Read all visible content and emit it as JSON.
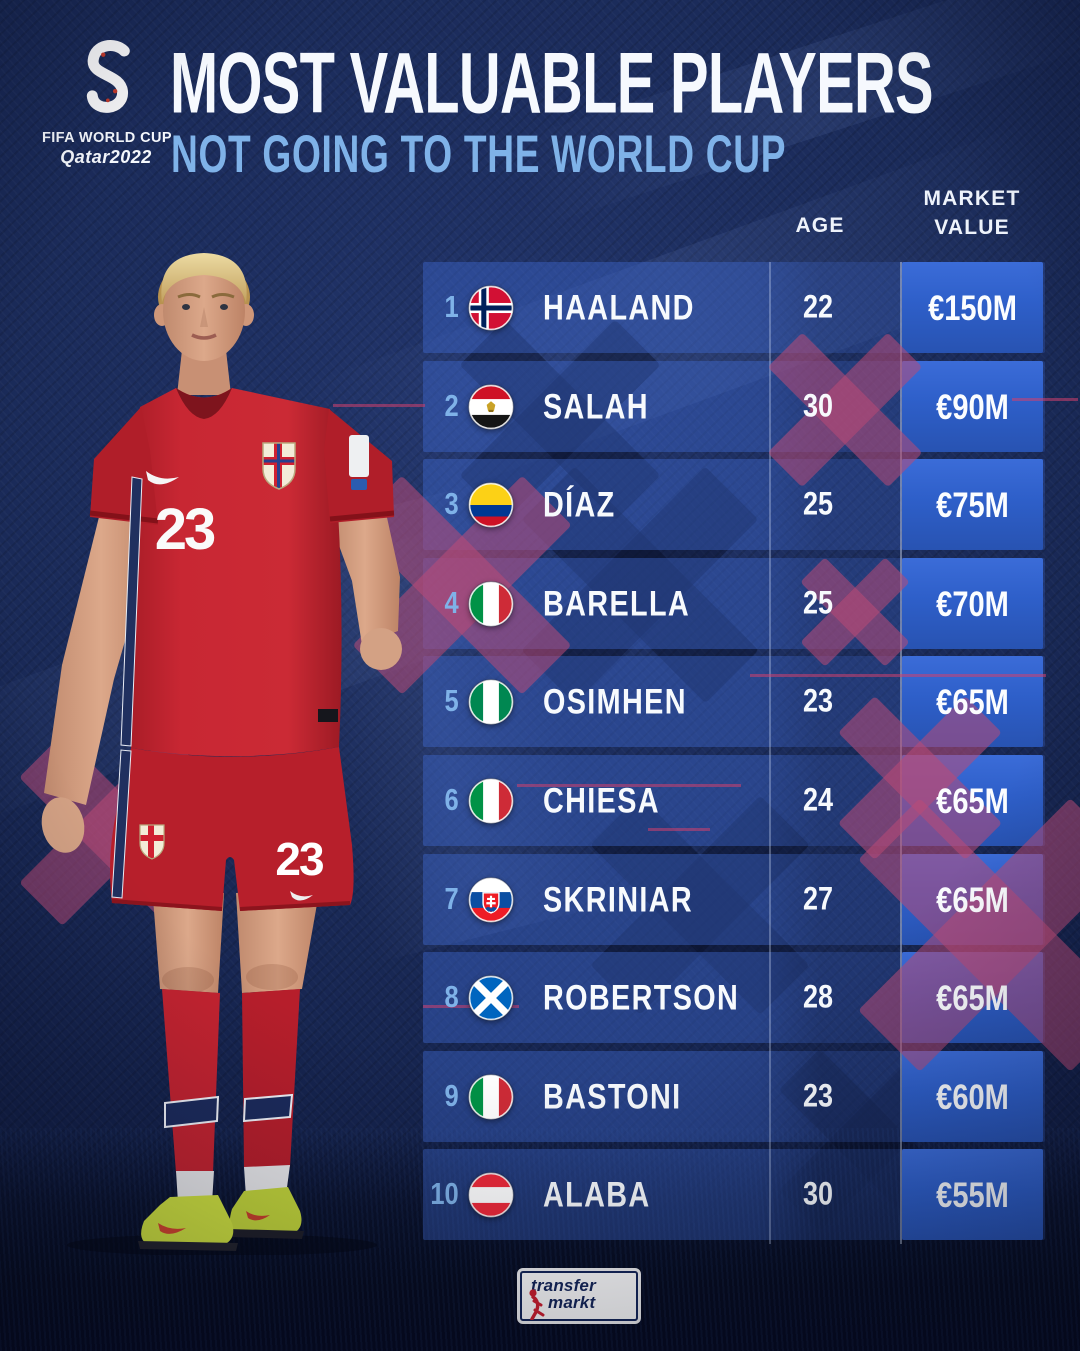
{
  "fifa_badge": {
    "line1": "FIFA WORLD CUP",
    "line2": "Qatar2022"
  },
  "header": {
    "title": "MOST VALUABLE PLAYERS",
    "subtitle": "NOT GOING TO THE WORLD CUP"
  },
  "table": {
    "headers": {
      "age": "AGE",
      "market_value": [
        "MARKET",
        "VALUE"
      ]
    },
    "rows": [
      {
        "rank": "1",
        "flag": "norway",
        "country": "Norway",
        "name": "HAALAND",
        "age": "22",
        "value": "€150M"
      },
      {
        "rank": "2",
        "flag": "egypt",
        "country": "Egypt",
        "name": "SALAH",
        "age": "30",
        "value": "€90M"
      },
      {
        "rank": "3",
        "flag": "colombia",
        "country": "Colombia",
        "name": "DÍAZ",
        "age": "25",
        "value": "€75M"
      },
      {
        "rank": "4",
        "flag": "italy",
        "country": "Italy",
        "name": "BARELLA",
        "age": "25",
        "value": "€70M"
      },
      {
        "rank": "5",
        "flag": "nigeria",
        "country": "Nigeria",
        "name": "OSIMHEN",
        "age": "23",
        "value": "€65M"
      },
      {
        "rank": "6",
        "flag": "italy",
        "country": "Italy",
        "name": "CHIESA",
        "age": "24",
        "value": "€65M"
      },
      {
        "rank": "7",
        "flag": "slovakia",
        "country": "Slovakia",
        "name": "SKRINIAR",
        "age": "27",
        "value": "€65M"
      },
      {
        "rank": "8",
        "flag": "scotland",
        "country": "Scotland",
        "name": "ROBERTSON",
        "age": "28",
        "value": "€65M"
      },
      {
        "rank": "9",
        "flag": "italy",
        "country": "Italy",
        "name": "BASTONI",
        "age": "23",
        "value": "€60M"
      },
      {
        "rank": "10",
        "flag": "austria",
        "country": "Austria",
        "name": "ALABA",
        "age": "30",
        "value": "€55M"
      }
    ]
  },
  "player": {
    "shirt_number": "23",
    "shorts_number": "23"
  },
  "footer_logo": {
    "line1": "transfer",
    "line2": "markt"
  },
  "colors": {
    "background_navy": "#1a2a58",
    "background_deep": "#0f1a3e",
    "row_band": "rgba(62,105,210,0.42)",
    "value_box": "#2e5fc9",
    "accent_light_blue": "#7fb2e8",
    "accent_red": "#c8102e",
    "x_mark_red": "rgba(186,74,118,0.55)",
    "text_white": "#f5f8fd",
    "transfermarkt_navy": "#14265a"
  },
  "chart_data": {
    "type": "table",
    "title": "MOST VALUABLE PLAYERS NOT GOING TO THE WORLD CUP",
    "columns": [
      "Rank",
      "Country",
      "Player",
      "Age",
      "Market value"
    ],
    "rows": [
      [
        1,
        "Norway",
        "HAALAND",
        22,
        "€150M"
      ],
      [
        2,
        "Egypt",
        "SALAH",
        30,
        "€90M"
      ],
      [
        3,
        "Colombia",
        "DÍAZ",
        25,
        "€75M"
      ],
      [
        4,
        "Italy",
        "BARELLA",
        25,
        "€70M"
      ],
      [
        5,
        "Nigeria",
        "OSIMHEN",
        23,
        "€65M"
      ],
      [
        6,
        "Italy",
        "CHIESA",
        24,
        "€65M"
      ],
      [
        7,
        "Slovakia",
        "SKRINIAR",
        27,
        "€65M"
      ],
      [
        8,
        "Scotland",
        "ROBERTSON",
        28,
        "€65M"
      ],
      [
        9,
        "Italy",
        "BASTONI",
        23,
        "€60M"
      ],
      [
        10,
        "Austria",
        "ALABA",
        30,
        "€55M"
      ]
    ]
  }
}
